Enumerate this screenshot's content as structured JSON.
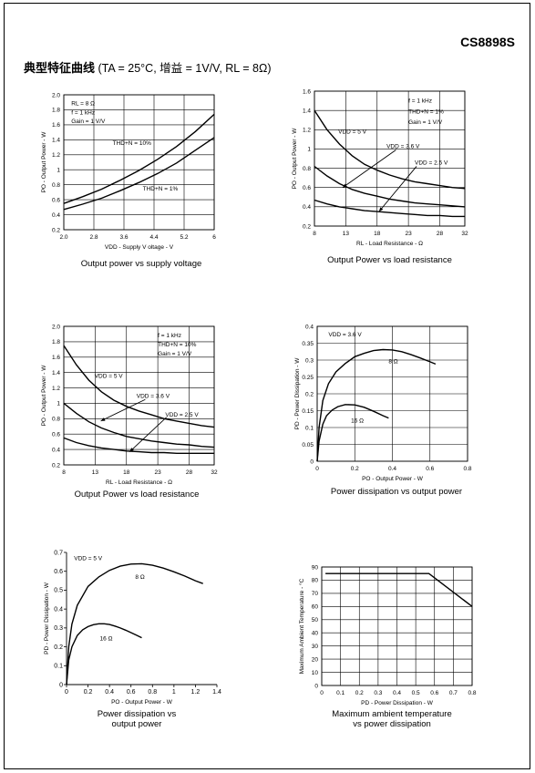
{
  "header": {
    "code": "CS8898S",
    "title_zh": "典型特征曲线",
    "title_cond": "(TA = 25°C, 增益 = 1V/V, RL = 8Ω)"
  },
  "chart_data": [
    {
      "id": "c1",
      "type": "line",
      "title": "Output power vs supply voltage",
      "xlabel": "VDD - Supply V oltage - V",
      "ylabel": "PO - Output Power - W",
      "xlim": [
        2.0,
        6.0
      ],
      "ylim": [
        0.2,
        2.0
      ],
      "xticks": [
        2.0,
        2.8,
        3.6,
        4.4,
        5.2,
        6
      ],
      "xtick_labels": [
        "2.0",
        "2.8",
        "3.6",
        "4.4",
        "5.2",
        "6"
      ],
      "yticks": [
        0.2,
        0.4,
        0.6,
        0.8,
        1.0,
        1.2,
        1.4,
        1.6,
        1.8,
        2.0
      ],
      "ytick_labels": [
        "0.2",
        "0.4",
        "0.6",
        "0.8",
        "1",
        "1.2",
        "1.4",
        "1.6",
        "1.8",
        "2.0"
      ],
      "xgrid": [
        2.0,
        2.8,
        3.6,
        4.4,
        5.2,
        6.0
      ],
      "ygrid": [
        0.2,
        0.4,
        0.6,
        0.8,
        1.0,
        1.2,
        1.4,
        1.6,
        1.8,
        2.0
      ],
      "series": [
        {
          "name": "THD+N = 10%",
          "x": [
            2.0,
            2.5,
            3.0,
            3.5,
            4.0,
            4.5,
            5.0,
            5.5,
            6.0
          ],
          "y": [
            0.55,
            0.64,
            0.74,
            0.86,
            0.99,
            1.14,
            1.31,
            1.51,
            1.74
          ]
        },
        {
          "name": "THD+N = 1%",
          "x": [
            2.0,
            2.5,
            3.0,
            3.5,
            4.0,
            4.5,
            5.0,
            5.5,
            6.0
          ],
          "y": [
            0.47,
            0.54,
            0.62,
            0.72,
            0.83,
            0.95,
            1.09,
            1.26,
            1.43
          ]
        }
      ],
      "annotations": [
        {
          "text": "RL = 8 Ω",
          "x": 2.2,
          "y": 1.86
        },
        {
          "text": "f = 1 kHz",
          "x": 2.2,
          "y": 1.74
        },
        {
          "text": "Gain = 1 V/V",
          "x": 2.2,
          "y": 1.62
        },
        {
          "text": "THD+N = 10%",
          "x": 3.3,
          "y": 1.33
        },
        {
          "text": "THD+N = 1%",
          "x": 4.1,
          "y": 0.72
        }
      ],
      "arrows": []
    },
    {
      "id": "c2",
      "type": "line",
      "title": "Output Power vs load resistance",
      "xlabel": "RL - Load Resistance - Ω",
      "ylabel": "PO - Output Power - W",
      "xlim": [
        8,
        32
      ],
      "ylim": [
        0.2,
        1.6
      ],
      "xticks": [
        8,
        13,
        18,
        23,
        28,
        32
      ],
      "xtick_labels": [
        "8",
        "13",
        "18",
        "23",
        "28",
        "32"
      ],
      "yticks": [
        0.2,
        0.4,
        0.6,
        0.8,
        1.0,
        1.2,
        1.4,
        1.6
      ],
      "ytick_labels": [
        "0.2",
        "0.4",
        "0.6",
        "0.8",
        "1",
        "1.2",
        "1.4",
        "1.6"
      ],
      "xgrid": [
        8,
        13,
        18,
        23,
        28,
        32
      ],
      "ygrid": [
        0.2,
        0.4,
        0.6,
        0.8,
        1.0,
        1.2,
        1.4,
        1.6
      ],
      "series": [
        {
          "name": "VDD = 5 V",
          "x": [
            8,
            10,
            12,
            14,
            16,
            18,
            20,
            22,
            24,
            26,
            28,
            30,
            32
          ],
          "y": [
            1.4,
            1.2,
            1.05,
            0.93,
            0.84,
            0.78,
            0.73,
            0.69,
            0.66,
            0.64,
            0.62,
            0.6,
            0.59
          ]
        },
        {
          "name": "VDD = 3.6 V",
          "x": [
            8,
            10,
            12,
            14,
            16,
            18,
            20,
            22,
            24,
            26,
            28,
            30,
            32
          ],
          "y": [
            0.82,
            0.72,
            0.64,
            0.58,
            0.54,
            0.51,
            0.48,
            0.46,
            0.44,
            0.43,
            0.42,
            0.41,
            0.4
          ]
        },
        {
          "name": "VDD = 2.5 V",
          "x": [
            8,
            10,
            12,
            14,
            16,
            18,
            20,
            22,
            24,
            26,
            28,
            30,
            32
          ],
          "y": [
            0.47,
            0.43,
            0.4,
            0.38,
            0.36,
            0.35,
            0.34,
            0.33,
            0.32,
            0.31,
            0.31,
            0.3,
            0.3
          ]
        }
      ],
      "annotations": [
        {
          "text": "f = 1 kHz",
          "x": 23,
          "y": 1.48
        },
        {
          "text": "THD+N = 1%",
          "x": 23,
          "y": 1.37
        },
        {
          "text": "Gain = 1 V/V",
          "x": 23,
          "y": 1.26
        },
        {
          "text": "VDD = 5 V",
          "x": 11.8,
          "y": 1.16
        },
        {
          "text": "VDD = 3.6 V",
          "x": 19.5,
          "y": 1.01
        },
        {
          "text": "VDD = 2.5 V",
          "x": 24,
          "y": 0.84
        }
      ],
      "arrows": [
        {
          "x1": 21,
          "y1": 0.99,
          "x2": 12.5,
          "y2": 0.6
        },
        {
          "x1": 24.3,
          "y1": 0.82,
          "x2": 18.3,
          "y2": 0.35
        }
      ]
    },
    {
      "id": "c3",
      "type": "line",
      "title": "Output Power vs load resistance",
      "xlabel": "RL - Load Resistance - Ω",
      "ylabel": "PO - Output Power - W",
      "xlim": [
        8,
        32
      ],
      "ylim": [
        0.2,
        2.0
      ],
      "xticks": [
        8,
        13,
        18,
        23,
        28,
        32
      ],
      "xtick_labels": [
        "8",
        "13",
        "18",
        "23",
        "28",
        "32"
      ],
      "yticks": [
        0.2,
        0.4,
        0.6,
        0.8,
        1.0,
        1.2,
        1.4,
        1.6,
        1.8,
        2.0
      ],
      "ytick_labels": [
        "0.2",
        "0.4",
        "0.6",
        "0.8",
        "1",
        "1.2",
        "1.4",
        "1.6",
        "1.8",
        "2.0"
      ],
      "xgrid": [
        8,
        13,
        18,
        23,
        28,
        32
      ],
      "ygrid": [
        0.2,
        0.4,
        0.6,
        0.8,
        1.0,
        1.2,
        1.4,
        1.6,
        1.8,
        2.0
      ],
      "series": [
        {
          "name": "VDD = 5 V",
          "x": [
            8,
            10,
            12,
            14,
            16,
            18,
            20,
            22,
            24,
            26,
            28,
            30,
            32
          ],
          "y": [
            1.75,
            1.5,
            1.3,
            1.15,
            1.04,
            0.96,
            0.9,
            0.85,
            0.8,
            0.77,
            0.74,
            0.71,
            0.69
          ]
        },
        {
          "name": "VDD = 3.6 V",
          "x": [
            8,
            10,
            12,
            14,
            16,
            18,
            20,
            22,
            24,
            26,
            28,
            30,
            32
          ],
          "y": [
            1.0,
            0.87,
            0.76,
            0.68,
            0.62,
            0.57,
            0.54,
            0.51,
            0.49,
            0.47,
            0.46,
            0.44,
            0.43
          ]
        },
        {
          "name": "VDD = 2.5 V",
          "x": [
            8,
            10,
            12,
            14,
            16,
            18,
            20,
            22,
            24,
            26,
            28,
            30,
            32
          ],
          "y": [
            0.55,
            0.49,
            0.45,
            0.42,
            0.4,
            0.38,
            0.37,
            0.36,
            0.36,
            0.35,
            0.35,
            0.35,
            0.35
          ]
        }
      ],
      "annotations": [
        {
          "text": "f = 1 kHz",
          "x": 23,
          "y": 1.86
        },
        {
          "text": "THD+N = 10%",
          "x": 23,
          "y": 1.74
        },
        {
          "text": "Gain = 1 V/V",
          "x": 23,
          "y": 1.62
        },
        {
          "text": "VDD = 5 V",
          "x": 12.9,
          "y": 1.33
        },
        {
          "text": "VDD = 3.6 V",
          "x": 19.6,
          "y": 1.07
        },
        {
          "text": "VDD = 2.5 V",
          "x": 24.2,
          "y": 0.83
        }
      ],
      "arrows": [
        {
          "x1": 21,
          "y1": 1.05,
          "x2": 13.9,
          "y2": 0.77
        },
        {
          "x1": 24.4,
          "y1": 0.82,
          "x2": 18.5,
          "y2": 0.37
        }
      ]
    },
    {
      "id": "c4",
      "type": "line",
      "title": "Power dissipation vs output power",
      "xlabel": "PO - Output Power - W",
      "ylabel": "PD - Power Dissipation - W",
      "xlim": [
        0,
        0.8
      ],
      "ylim": [
        0,
        0.4
      ],
      "xticks": [
        0,
        0.2,
        0.4,
        0.6,
        0.8
      ],
      "xtick_labels": [
        "0",
        "0.2",
        "0.4",
        "0.6",
        "0.8"
      ],
      "yticks": [
        0,
        0.05,
        0.1,
        0.15,
        0.2,
        0.25,
        0.3,
        0.35,
        0.4
      ],
      "ytick_labels": [
        "0",
        "0.05",
        "0.1",
        "0.15",
        "0.2",
        "0.25",
        "0.3",
        "0.35",
        "0.4"
      ],
      "xgrid": [
        0,
        0.2,
        0.4,
        0.6,
        0.8
      ],
      "ygrid": [
        0,
        0.05,
        0.1,
        0.15,
        0.2,
        0.25,
        0.3,
        0.35,
        0.4
      ],
      "series": [
        {
          "name": "8 Ω",
          "x": [
            0,
            0.01,
            0.03,
            0.06,
            0.1,
            0.15,
            0.2,
            0.25,
            0.3,
            0.35,
            0.4,
            0.45,
            0.5,
            0.55,
            0.6,
            0.63
          ],
          "y": [
            0,
            0.1,
            0.18,
            0.23,
            0.265,
            0.29,
            0.31,
            0.32,
            0.328,
            0.331,
            0.33,
            0.325,
            0.316,
            0.306,
            0.295,
            0.288
          ]
        },
        {
          "name": "16 Ω",
          "x": [
            0,
            0.01,
            0.03,
            0.05,
            0.08,
            0.11,
            0.15,
            0.2,
            0.25,
            0.3,
            0.35,
            0.38
          ],
          "y": [
            0,
            0.06,
            0.11,
            0.135,
            0.152,
            0.162,
            0.168,
            0.167,
            0.16,
            0.148,
            0.135,
            0.128
          ]
        }
      ],
      "annotations": [
        {
          "text": "VDD = 3.6 V",
          "x": 0.06,
          "y": 0.37
        },
        {
          "text": "8 Ω",
          "x": 0.38,
          "y": 0.29
        },
        {
          "text": "16 Ω",
          "x": 0.18,
          "y": 0.115
        }
      ],
      "arrows": []
    },
    {
      "id": "c5",
      "type": "line",
      "title": "Power dissipation vs output power",
      "xlabel": "PO - Output Power - W",
      "ylabel": "PD - Power Dissipation - W",
      "xlim": [
        0,
        1.4
      ],
      "ylim": [
        0,
        0.7
      ],
      "xticks": [
        0,
        0.2,
        0.4,
        0.6,
        0.8,
        1.0,
        1.2,
        1.4
      ],
      "xtick_labels": [
        "0",
        "0.2",
        "0.4",
        "0.6",
        "0.8",
        "1",
        "1.2",
        "1.4"
      ],
      "yticks": [
        0,
        0.1,
        0.2,
        0.3,
        0.4,
        0.5,
        0.6,
        0.7
      ],
      "ytick_labels": [
        "0",
        "0.1",
        "0.2",
        "0.3",
        "0.4",
        "0.5",
        "0.6",
        "0.7"
      ],
      "xgrid": [],
      "ygrid": [],
      "series": [
        {
          "name": "8 Ω",
          "x": [
            0,
            0.02,
            0.05,
            0.1,
            0.2,
            0.3,
            0.4,
            0.5,
            0.6,
            0.7,
            0.8,
            0.9,
            1.0,
            1.1,
            1.2,
            1.27
          ],
          "y": [
            0,
            0.2,
            0.32,
            0.42,
            0.52,
            0.57,
            0.605,
            0.627,
            0.638,
            0.64,
            0.632,
            0.617,
            0.597,
            0.575,
            0.55,
            0.535
          ]
        },
        {
          "name": "16 Ω",
          "x": [
            0,
            0.02,
            0.05,
            0.1,
            0.15,
            0.2,
            0.25,
            0.3,
            0.35,
            0.4,
            0.45,
            0.5,
            0.55,
            0.6,
            0.65,
            0.7
          ],
          "y": [
            0,
            0.13,
            0.2,
            0.26,
            0.29,
            0.307,
            0.317,
            0.322,
            0.322,
            0.318,
            0.31,
            0.3,
            0.288,
            0.275,
            0.262,
            0.248
          ]
        }
      ],
      "annotations": [
        {
          "text": "VDD = 5 V",
          "x": 0.07,
          "y": 0.66
        },
        {
          "text": "8 Ω",
          "x": 0.64,
          "y": 0.56
        },
        {
          "text": "16 Ω",
          "x": 0.31,
          "y": 0.235
        }
      ],
      "arrows": []
    },
    {
      "id": "c6",
      "type": "line",
      "title": "Maximum ambient temperature vs power dissipation",
      "xlabel": "PD - Power Dissipation - W",
      "ylabel": "Maximum Ambient Temperature - °C",
      "xlim": [
        0,
        0.8
      ],
      "ylim": [
        0,
        90
      ],
      "xticks": [
        0,
        0.1,
        0.2,
        0.3,
        0.4,
        0.5,
        0.6,
        0.7,
        0.8
      ],
      "xtick_labels": [
        "0",
        "0.1",
        "0.2",
        "0.3",
        "0.4",
        "0.5",
        "0.6",
        "0.7",
        "0.8"
      ],
      "yticks": [
        0,
        10,
        20,
        30,
        40,
        50,
        60,
        70,
        80,
        90
      ],
      "ytick_labels": [
        "0",
        "10",
        "20",
        "30",
        "40",
        "50",
        "60",
        "70",
        "80",
        "90"
      ],
      "xgrid": [
        0,
        0.1,
        0.2,
        0.3,
        0.4,
        0.5,
        0.6,
        0.7,
        0.8
      ],
      "ygrid": [
        0,
        10,
        20,
        30,
        40,
        50,
        60,
        70,
        80,
        90
      ],
      "series": [
        {
          "name": "",
          "x": [
            0.02,
            0.57,
            0.8
          ],
          "y": [
            85,
            85,
            60
          ]
        }
      ],
      "annotations": [],
      "arrows": []
    }
  ],
  "captions": [
    "Output power vs supply voltage",
    "Output Power vs load resistance",
    "Output Power vs load resistance",
    "Power dissipation vs output power",
    "Power dissipation vs\noutput power",
    "Maximum ambient temperature\nvs power dissipation"
  ]
}
